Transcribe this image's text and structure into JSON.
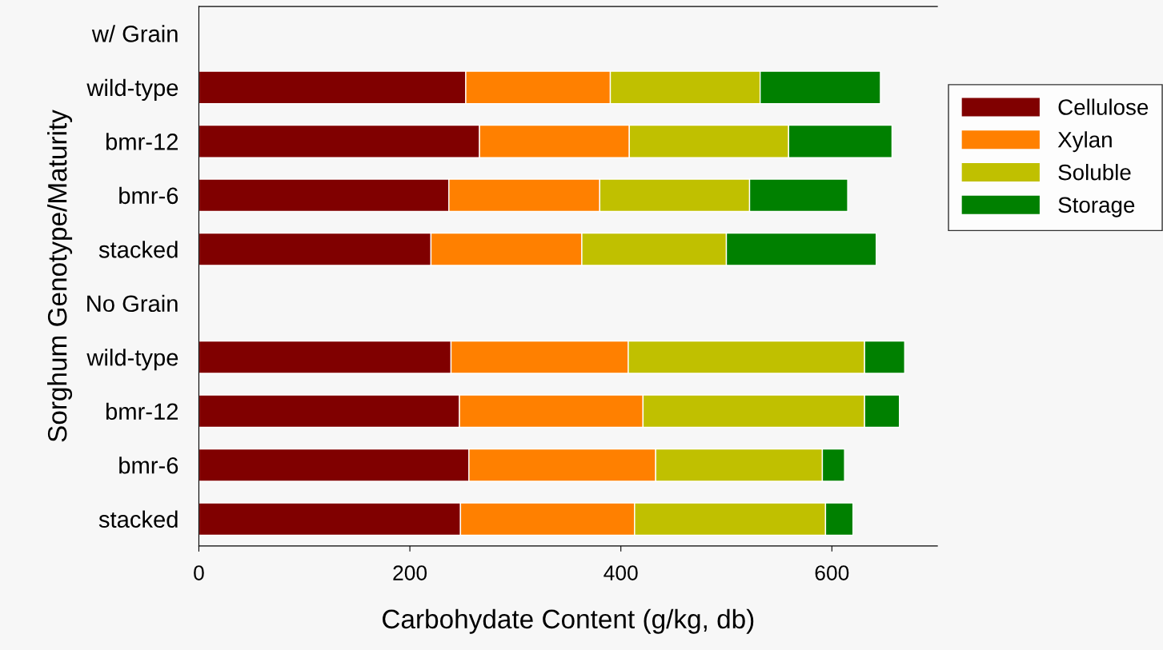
{
  "chart_data": {
    "type": "bar",
    "orientation": "horizontal",
    "stacked": true,
    "xlabel": "Carbohydate Content (g/kg, db)",
    "ylabel": "Sorghum Genotype/Maturity",
    "categories": [
      "w/ Grain",
      "wild-type",
      "bmr-12",
      "bmr-6",
      "stacked",
      "No Grain",
      "wild-type",
      "bmr-12",
      "bmr-6",
      "stacked"
    ],
    "series": [
      {
        "name": "Cellulose",
        "color": "#800000",
        "values": [
          null,
          253,
          266,
          237,
          220,
          null,
          239,
          247,
          256,
          248
        ]
      },
      {
        "name": "Xylan",
        "color": "#ff8000",
        "values": [
          null,
          137,
          142,
          143,
          143,
          null,
          168,
          174,
          177,
          165
        ]
      },
      {
        "name": "Soluble",
        "color": "#c0c000",
        "values": [
          null,
          142,
          151,
          142,
          137,
          null,
          224,
          210,
          158,
          181
        ]
      },
      {
        "name": "Storage",
        "color": "#008000",
        "values": [
          null,
          114,
          98,
          93,
          142,
          null,
          38,
          33,
          21,
          26
        ]
      }
    ],
    "xlim": [
      0,
      700
    ],
    "xticks": [
      0,
      200,
      400,
      600
    ],
    "grid": false,
    "legend": "right"
  }
}
